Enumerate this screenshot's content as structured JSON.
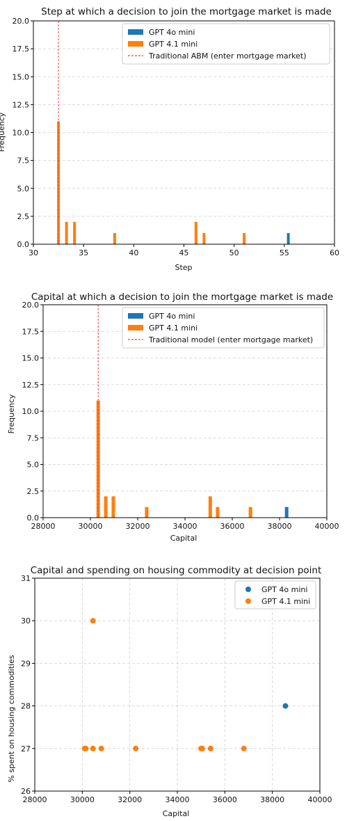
{
  "chart_data": [
    {
      "type": "bar",
      "title": "Step at which a decision to join the mortgage market is made",
      "xlabel": "Step",
      "ylabel": "Frequency",
      "xlim": [
        30,
        60
      ],
      "ylim": [
        0,
        20
      ],
      "xticks": [
        30,
        35,
        40,
        45,
        50,
        55,
        60
      ],
      "yticks": [
        0.0,
        2.5,
        5.0,
        7.5,
        10.0,
        12.5,
        15.0,
        17.5,
        20.0
      ],
      "grid": true,
      "legend_position": "top-right",
      "series": [
        {
          "name": "GPT 4o mini",
          "color": "#1f77b4",
          "bars": [
            {
              "x": 55.4,
              "value": 1
            }
          ]
        },
        {
          "name": "GPT 4.1 mini",
          "color": "#ff7f0e",
          "bars": [
            {
              "x": 32.5,
              "value": 11
            },
            {
              "x": 33.3,
              "value": 2
            },
            {
              "x": 34.1,
              "value": 2
            },
            {
              "x": 38.1,
              "value": 1
            },
            {
              "x": 46.2,
              "value": 2
            },
            {
              "x": 47.0,
              "value": 1
            },
            {
              "x": 51.0,
              "value": 1
            }
          ]
        }
      ],
      "reference_line": {
        "name": "Traditional ABM (enter mortgage market)",
        "x": 32.5,
        "color": "#e8413c"
      }
    },
    {
      "type": "bar",
      "title": "Capital at which a decision to join the mortgage market is made",
      "xlabel": "Capital",
      "ylabel": "Frequency",
      "xlim": [
        28000,
        40000
      ],
      "ylim": [
        0,
        20
      ],
      "xticks": [
        28000,
        30000,
        32000,
        34000,
        36000,
        38000,
        40000
      ],
      "yticks": [
        0.0,
        2.5,
        5.0,
        7.5,
        10.0,
        12.5,
        15.0,
        17.5,
        20.0
      ],
      "grid": true,
      "legend_position": "top-right",
      "series": [
        {
          "name": "GPT 4o mini",
          "color": "#1f77b4",
          "bars": [
            {
              "x": 38300,
              "value": 1
            }
          ]
        },
        {
          "name": "GPT 4.1 mini",
          "color": "#ff7f0e",
          "bars": [
            {
              "x": 30330,
              "value": 11
            },
            {
              "x": 30650,
              "value": 2
            },
            {
              "x": 30970,
              "value": 2
            },
            {
              "x": 32380,
              "value": 1
            },
            {
              "x": 35070,
              "value": 2
            },
            {
              "x": 35380,
              "value": 1
            },
            {
              "x": 36770,
              "value": 1
            }
          ]
        }
      ],
      "reference_line": {
        "name": "Traditional model (enter mortgage market)",
        "x": 30330,
        "color": "#e8413c"
      }
    },
    {
      "type": "scatter",
      "title": "Capital and spending on housing commodity at decision point",
      "xlabel": "Capital",
      "ylabel": "% spent on housing commodities",
      "xlim": [
        28000,
        40000
      ],
      "ylim": [
        26,
        31
      ],
      "xticks": [
        28000,
        30000,
        32000,
        34000,
        36000,
        38000,
        40000
      ],
      "yticks": [
        26,
        27,
        28,
        29,
        30,
        31
      ],
      "grid": true,
      "legend_position": "top-right",
      "series": [
        {
          "name": "GPT 4o mini",
          "color": "#1f77b4",
          "points": [
            {
              "x": 38550,
              "y": 28
            }
          ]
        },
        {
          "name": "GPT 4.1 mini",
          "color": "#ff7f0e",
          "points": [
            {
              "x": 30100,
              "y": 27
            },
            {
              "x": 30150,
              "y": 27
            },
            {
              "x": 30450,
              "y": 27
            },
            {
              "x": 30800,
              "y": 27
            },
            {
              "x": 32250,
              "y": 27
            },
            {
              "x": 35000,
              "y": 27
            },
            {
              "x": 35050,
              "y": 27
            },
            {
              "x": 35400,
              "y": 27
            },
            {
              "x": 36800,
              "y": 27
            },
            {
              "x": 30450,
              "y": 30
            }
          ]
        }
      ]
    }
  ]
}
